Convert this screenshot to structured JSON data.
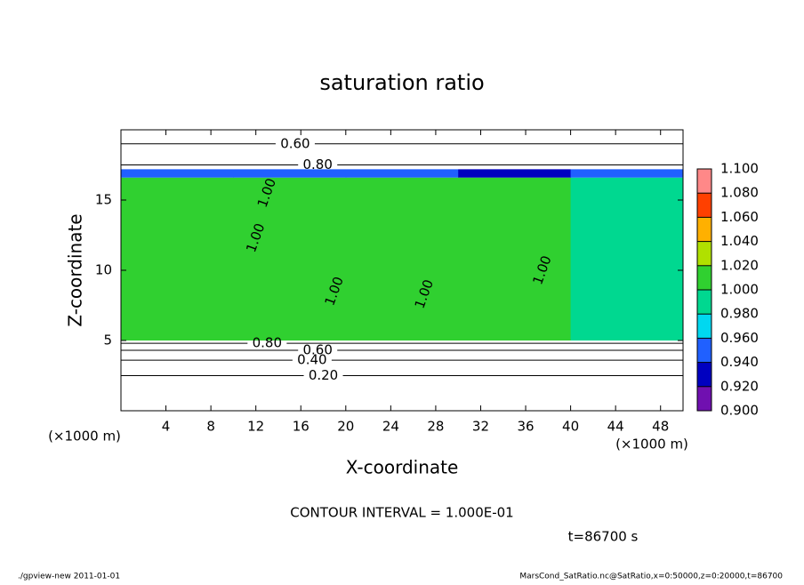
{
  "chart_data": {
    "type": "contour",
    "title": "saturation ratio",
    "xlabel": "X-coordinate",
    "ylabel": "Z-coordinate",
    "x_unit": "(×1000 m)",
    "y_unit": "(×1000 m)",
    "xlim": [
      0,
      50
    ],
    "ylim": [
      0,
      20
    ],
    "xticks": [
      4,
      8,
      12,
      16,
      20,
      24,
      28,
      32,
      36,
      40,
      44,
      48
    ],
    "yticks": [
      5,
      10,
      15
    ],
    "field": {
      "x_edges": [
        0,
        10,
        20,
        30,
        40,
        50
      ],
      "z_edges": [
        0,
        5,
        16.6,
        17.2,
        20
      ],
      "values": [
        [
          0.5,
          0.5,
          0.5,
          0.5,
          0.5
        ],
        [
          1.005,
          1.005,
          1.003,
          1.005,
          0.995
        ],
        [
          0.95,
          0.95,
          0.95,
          0.93,
          0.95
        ],
        [
          0.7,
          0.7,
          0.7,
          0.7,
          0.7
        ]
      ]
    },
    "contours": [
      {
        "level": {
          "value": 0.2,
          "label": "0.20"
        },
        "z": 2.5,
        "label_x": 18
      },
      {
        "level": {
          "value": 0.4,
          "label": "0.40"
        },
        "z": 3.6,
        "label_x": 17
      },
      {
        "level": {
          "value": 0.6,
          "label": "0.60"
        },
        "z": 4.3,
        "label_x": 17.5
      },
      {
        "level": {
          "value": 0.8,
          "label": "0.80"
        },
        "z": 4.8,
        "label_x": 13
      },
      {
        "level": {
          "value": 0.8,
          "label": "0.80"
        },
        "z": 17.5,
        "label_x": 17.5
      },
      {
        "level": {
          "value": 0.6,
          "label": "0.60"
        },
        "z": 19.0,
        "label_x": 15.5
      }
    ],
    "contour_labels": [
      {
        "x": 12,
        "z": 12.3,
        "label": "1.00"
      },
      {
        "x": 19,
        "z": 8.5,
        "label": "1.00"
      },
      {
        "x": 13,
        "z": 15.5,
        "label": "1.00"
      },
      {
        "x": 27,
        "z": 8.3,
        "label": "1.00"
      },
      {
        "x": 37.5,
        "z": 10,
        "label": "1.00"
      }
    ],
    "colorbar": {
      "ticks": [
        {
          "value": 0.9,
          "label": "0.900"
        },
        {
          "value": 0.92,
          "label": "0.920"
        },
        {
          "value": 0.94,
          "label": "0.940"
        },
        {
          "value": 0.96,
          "label": "0.960"
        },
        {
          "value": 0.98,
          "label": "0.980"
        },
        {
          "value": 1.0,
          "label": "1.000"
        },
        {
          "value": 1.02,
          "label": "1.020"
        },
        {
          "value": 1.04,
          "label": "1.040"
        },
        {
          "value": 1.06,
          "label": "1.060"
        },
        {
          "value": 1.08,
          "label": "1.080"
        },
        {
          "value": 1.1,
          "label": "1.100"
        }
      ],
      "colors": [
        "#7010b0",
        "#0000c0",
        "#2060ff",
        "#00d8f0",
        "#00d890",
        "#30d030",
        "#b0e000",
        "#ffb000",
        "#ff4000",
        "#ff8888"
      ]
    },
    "contour_interval": "CONTOUR INTERVAL = 1.000E-01",
    "time": "t=86700 s",
    "footer_left": "./gpview-new   2011-01-01",
    "footer_right": "MarsCond_SatRatio.nc@SatRatio,x=0:50000,z=0:20000,t=86700"
  }
}
